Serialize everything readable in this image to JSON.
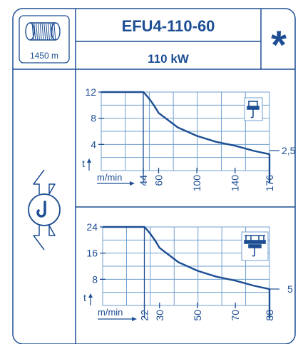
{
  "header": {
    "model": "EFU4-110-60",
    "power": "110 kW",
    "star": "*",
    "cable_length": "1450 m"
  },
  "colors": {
    "primary": "#1d4e93",
    "grid": "#6f9fd0",
    "background": "#ffffff"
  },
  "icons": [
    "cable-drum-icon",
    "hook-up-down-icon",
    "single-trolley-icon",
    "double-trolley-icon"
  ],
  "chart_data": [
    {
      "type": "line",
      "title": "",
      "xlabel": "m/min",
      "ylabel": "t",
      "yticks": [
        4,
        8,
        12
      ],
      "xticks": [
        44,
        60,
        100,
        140,
        176
      ],
      "ylim": [
        0,
        12
      ],
      "xlim": [
        0,
        176
      ],
      "grid": true,
      "end_value_label": "2,5",
      "series": [
        {
          "x": [
            0,
            44,
            60,
            80,
            100,
            120,
            140,
            160,
            176
          ],
          "y": [
            12,
            12,
            8.8,
            6.6,
            5.3,
            4.4,
            3.8,
            3.0,
            2.5
          ]
        }
      ]
    },
    {
      "type": "line",
      "title": "",
      "xlabel": "m/min",
      "ylabel": "t",
      "yticks": [
        8,
        16,
        24
      ],
      "xticks": [
        22,
        30,
        50,
        70,
        88
      ],
      "ylim": [
        0,
        24
      ],
      "xlim": [
        0,
        88
      ],
      "grid": true,
      "end_value_label": "5",
      "series": [
        {
          "x": [
            0,
            22,
            30,
            40,
            50,
            60,
            70,
            80,
            88
          ],
          "y": [
            24,
            24,
            17.6,
            13.2,
            10.6,
            8.8,
            7.6,
            6.0,
            5
          ]
        }
      ]
    }
  ]
}
